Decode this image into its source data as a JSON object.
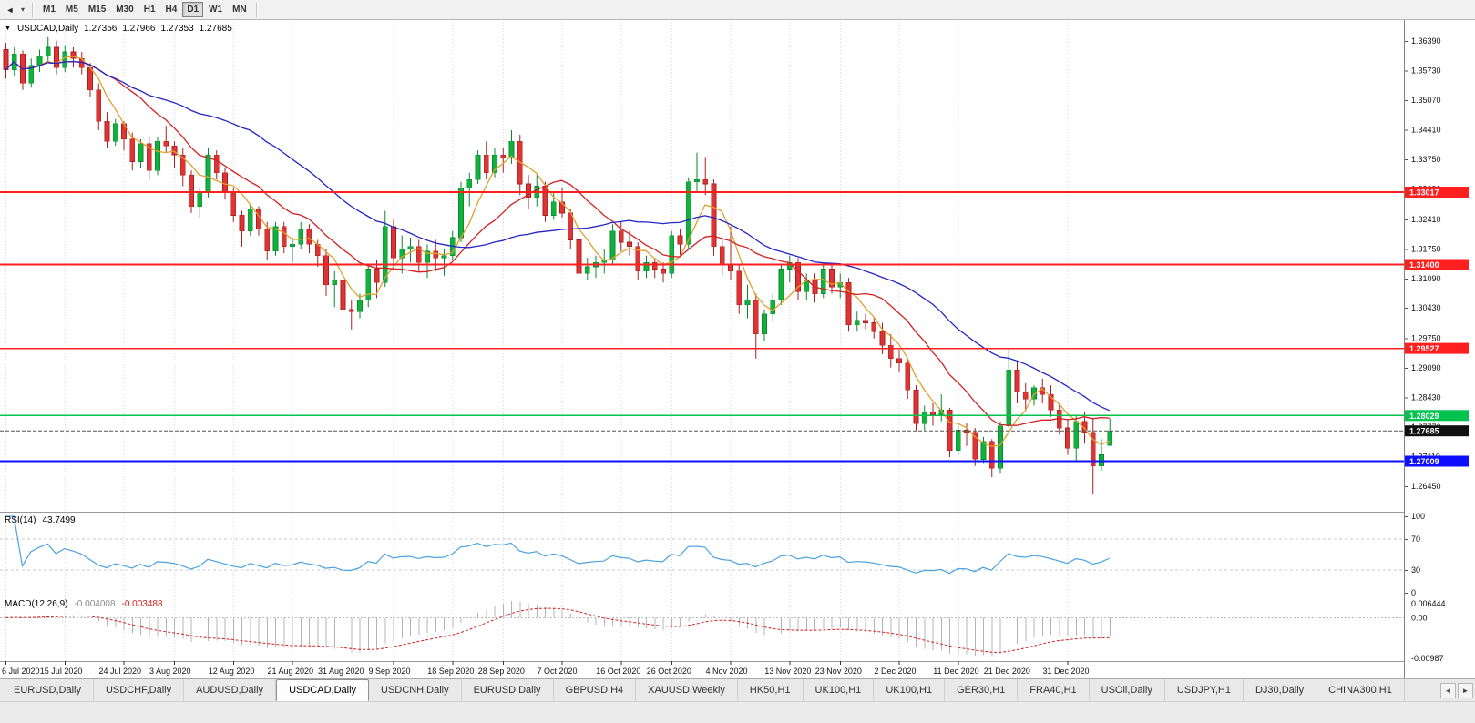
{
  "icons": {
    "collapse": "▼",
    "cursor": "◄",
    "caret": "▾",
    "tab_left": "◄",
    "tab_right": "►"
  },
  "toolbar": {
    "timeframes": [
      "M1",
      "M5",
      "M15",
      "M30",
      "H1",
      "H4",
      "D1",
      "W1",
      "MN"
    ],
    "active": "D1"
  },
  "info_bar": {
    "symbol": "USDCAD,Daily",
    "open": "1.27356",
    "high": "1.27966",
    "low": "1.27353",
    "close": "1.27685"
  },
  "colors": {
    "up": "#10b23c",
    "up_border": "#0a8a2e",
    "down": "#e03434",
    "down_border": "#a81f1f",
    "macd_hist": "#b4b4b4",
    "macd_signal": "#d42020",
    "price_badge": "#101010",
    "grid": "#dadada",
    "axis_text": "#111111"
  },
  "chart_data": {
    "type": "candlestick",
    "symbol": "USDCAD",
    "timeframe": "Daily",
    "y_axis": {
      "max": 1.368,
      "min": 1.259,
      "ticks": [
        "1.36390",
        "1.35730",
        "1.35070",
        "1.34410",
        "1.33750",
        "1.33090",
        "1.32410",
        "1.31750",
        "1.31090",
        "1.30430",
        "1.29750",
        "1.29090",
        "1.28430",
        "1.27770",
        "1.27110",
        "1.26450"
      ]
    },
    "x_ticks": [
      {
        "label": "6 Jul 2020",
        "index": 0
      },
      {
        "label": "15 Jul 2020",
        "index": 7
      },
      {
        "label": "24 Jul 2020",
        "index": 14
      },
      {
        "label": "3 Aug 2020",
        "index": 20
      },
      {
        "label": "12 Aug 2020",
        "index": 27
      },
      {
        "label": "21 Aug 2020",
        "index": 34
      },
      {
        "label": "31 Aug 2020",
        "index": 40
      },
      {
        "label": "9 Sep 2020",
        "index": 46
      },
      {
        "label": "18 Sep 2020",
        "index": 53
      },
      {
        "label": "28 Sep 2020",
        "index": 59
      },
      {
        "label": "7 Oct 2020",
        "index": 66
      },
      {
        "label": "16 Oct 2020",
        "index": 73
      },
      {
        "label": "26 Oct 2020",
        "index": 79
      },
      {
        "label": "4 Nov 2020",
        "index": 86
      },
      {
        "label": "13 Nov 2020",
        "index": 93
      },
      {
        "label": "23 Nov 2020",
        "index": 99
      },
      {
        "label": "2 Dec 2020",
        "index": 106
      },
      {
        "label": "11 Dec 2020",
        "index": 113
      },
      {
        "label": "21 Dec 2020",
        "index": 119
      },
      {
        "label": "31 Dec 2020",
        "index": 126
      }
    ],
    "candles": [
      [
        1.362,
        1.3635,
        1.3555,
        1.3575
      ],
      [
        1.3575,
        1.3625,
        1.356,
        1.361
      ],
      [
        1.361,
        1.3618,
        1.353,
        1.3545
      ],
      [
        1.3545,
        1.36,
        1.3535,
        1.3585
      ],
      [
        1.3585,
        1.362,
        1.357,
        1.3605
      ],
      [
        1.3605,
        1.3648,
        1.359,
        1.3625
      ],
      [
        1.3625,
        1.364,
        1.3565,
        1.358
      ],
      [
        1.358,
        1.363,
        1.357,
        1.3615
      ],
      [
        1.3615,
        1.3625,
        1.358,
        1.36
      ],
      [
        1.36,
        1.3615,
        1.3565,
        1.358
      ],
      [
        1.358,
        1.359,
        1.3515,
        1.353
      ],
      [
        1.353,
        1.3545,
        1.344,
        1.346
      ],
      [
        1.346,
        1.348,
        1.34,
        1.3415
      ],
      [
        1.3415,
        1.3465,
        1.3405,
        1.3455
      ],
      [
        1.3455,
        1.346,
        1.3395,
        1.342
      ],
      [
        1.342,
        1.3435,
        1.335,
        1.337
      ],
      [
        1.337,
        1.342,
        1.3355,
        1.341
      ],
      [
        1.341,
        1.3425,
        1.333,
        1.335
      ],
      [
        1.335,
        1.3425,
        1.334,
        1.3415
      ],
      [
        1.3415,
        1.345,
        1.339,
        1.3405
      ],
      [
        1.3405,
        1.3415,
        1.3355,
        1.3385
      ],
      [
        1.3385,
        1.34,
        1.3315,
        1.334
      ],
      [
        1.334,
        1.335,
        1.3255,
        1.327
      ],
      [
        1.327,
        1.331,
        1.3245,
        1.33
      ],
      [
        1.33,
        1.34,
        1.329,
        1.3385
      ],
      [
        1.3385,
        1.3395,
        1.333,
        1.3345
      ],
      [
        1.3345,
        1.3355,
        1.3285,
        1.33
      ],
      [
        1.33,
        1.331,
        1.3235,
        1.325
      ],
      [
        1.325,
        1.326,
        1.318,
        1.3215
      ],
      [
        1.3215,
        1.3275,
        1.3205,
        1.3265
      ],
      [
        1.3265,
        1.327,
        1.3205,
        1.322
      ],
      [
        1.322,
        1.3235,
        1.315,
        1.317
      ],
      [
        1.317,
        1.3235,
        1.316,
        1.3225
      ],
      [
        1.3225,
        1.3235,
        1.3165,
        1.318
      ],
      [
        1.318,
        1.32,
        1.3145,
        1.3185
      ],
      [
        1.3185,
        1.3235,
        1.3175,
        1.322
      ],
      [
        1.322,
        1.323,
        1.3165,
        1.3185
      ],
      [
        1.3185,
        1.3195,
        1.3135,
        1.316
      ],
      [
        1.316,
        1.3175,
        1.307,
        1.3095
      ],
      [
        1.3095,
        1.3125,
        1.3045,
        1.3105
      ],
      [
        1.3105,
        1.3115,
        1.3015,
        1.304
      ],
      [
        1.304,
        1.306,
        1.2995,
        1.3035
      ],
      [
        1.3035,
        1.3075,
        1.302,
        1.306
      ],
      [
        1.306,
        1.314,
        1.3045,
        1.313
      ],
      [
        1.313,
        1.315,
        1.3065,
        1.31
      ],
      [
        1.31,
        1.326,
        1.309,
        1.3225
      ],
      [
        1.3225,
        1.324,
        1.313,
        1.3155
      ],
      [
        1.3155,
        1.3205,
        1.312,
        1.3175
      ],
      [
        1.3175,
        1.32,
        1.3145,
        1.318
      ],
      [
        1.318,
        1.3195,
        1.3125,
        1.3145
      ],
      [
        1.3145,
        1.3185,
        1.311,
        1.317
      ],
      [
        1.317,
        1.3195,
        1.3125,
        1.3155
      ],
      [
        1.3155,
        1.3175,
        1.3115,
        1.316
      ],
      [
        1.316,
        1.3215,
        1.315,
        1.32
      ],
      [
        1.32,
        1.3325,
        1.319,
        1.331
      ],
      [
        1.331,
        1.3345,
        1.327,
        1.333
      ],
      [
        1.333,
        1.3395,
        1.332,
        1.3385
      ],
      [
        1.3385,
        1.3415,
        1.333,
        1.3345
      ],
      [
        1.3345,
        1.34,
        1.3335,
        1.3385
      ],
      [
        1.3385,
        1.34,
        1.3345,
        1.338
      ],
      [
        1.338,
        1.344,
        1.3365,
        1.3415
      ],
      [
        1.3415,
        1.343,
        1.3295,
        1.332
      ],
      [
        1.332,
        1.334,
        1.3265,
        1.329
      ],
      [
        1.329,
        1.334,
        1.327,
        1.3315
      ],
      [
        1.3315,
        1.3325,
        1.3235,
        1.325
      ],
      [
        1.325,
        1.33,
        1.324,
        1.328
      ],
      [
        1.328,
        1.331,
        1.3245,
        1.3255
      ],
      [
        1.3255,
        1.3265,
        1.3175,
        1.3195
      ],
      [
        1.3195,
        1.3205,
        1.31,
        1.312
      ],
      [
        1.312,
        1.3155,
        1.3105,
        1.3135
      ],
      [
        1.3135,
        1.316,
        1.311,
        1.3145
      ],
      [
        1.3145,
        1.3175,
        1.312,
        1.315
      ],
      [
        1.315,
        1.323,
        1.314,
        1.3215
      ],
      [
        1.3215,
        1.3235,
        1.317,
        1.319
      ],
      [
        1.319,
        1.3215,
        1.316,
        1.318
      ],
      [
        1.318,
        1.319,
        1.3105,
        1.3125
      ],
      [
        1.3125,
        1.316,
        1.311,
        1.3145
      ],
      [
        1.3145,
        1.3155,
        1.311,
        1.313
      ],
      [
        1.313,
        1.3145,
        1.31,
        1.312
      ],
      [
        1.312,
        1.3215,
        1.311,
        1.3205
      ],
      [
        1.3205,
        1.322,
        1.316,
        1.3185
      ],
      [
        1.3185,
        1.3335,
        1.3175,
        1.3325
      ],
      [
        1.3325,
        1.339,
        1.33,
        1.333
      ],
      [
        1.333,
        1.338,
        1.3295,
        1.332
      ],
      [
        1.332,
        1.333,
        1.316,
        1.318
      ],
      [
        1.318,
        1.32,
        1.3115,
        1.314
      ],
      [
        1.314,
        1.3225,
        1.3105,
        1.3125
      ],
      [
        1.3125,
        1.314,
        1.303,
        1.305
      ],
      [
        1.305,
        1.3095,
        1.302,
        1.306
      ],
      [
        1.306,
        1.3075,
        1.293,
        1.2985
      ],
      [
        1.2985,
        1.304,
        1.297,
        1.303
      ],
      [
        1.303,
        1.3075,
        1.3015,
        1.306
      ],
      [
        1.306,
        1.314,
        1.305,
        1.313
      ],
      [
        1.313,
        1.316,
        1.31,
        1.3145
      ],
      [
        1.3145,
        1.3155,
        1.306,
        1.308
      ],
      [
        1.308,
        1.312,
        1.306,
        1.3105
      ],
      [
        1.3105,
        1.312,
        1.3055,
        1.3075
      ],
      [
        1.3075,
        1.314,
        1.3065,
        1.313
      ],
      [
        1.313,
        1.314,
        1.3075,
        1.309
      ],
      [
        1.309,
        1.312,
        1.3065,
        1.31
      ],
      [
        1.31,
        1.311,
        1.299,
        1.3005
      ],
      [
        1.3005,
        1.3035,
        1.299,
        1.3015
      ],
      [
        1.3015,
        1.303,
        1.2995,
        1.301
      ],
      [
        1.301,
        1.302,
        1.2975,
        1.299
      ],
      [
        1.299,
        1.301,
        1.294,
        1.296
      ],
      [
        1.296,
        1.2985,
        1.291,
        1.293
      ],
      [
        1.293,
        1.295,
        1.29,
        1.292
      ],
      [
        1.292,
        1.293,
        1.284,
        1.286
      ],
      [
        1.286,
        1.287,
        1.277,
        1.2785
      ],
      [
        1.2785,
        1.2825,
        1.277,
        1.281
      ],
      [
        1.281,
        1.283,
        1.278,
        1.2805
      ],
      [
        1.2805,
        1.285,
        1.279,
        1.2815
      ],
      [
        1.2815,
        1.282,
        1.271,
        1.2725
      ],
      [
        1.2725,
        1.2785,
        1.2715,
        1.277
      ],
      [
        1.277,
        1.2785,
        1.2735,
        1.2765
      ],
      [
        1.2765,
        1.2775,
        1.269,
        1.2705
      ],
      [
        1.2705,
        1.2755,
        1.2695,
        1.2745
      ],
      [
        1.2745,
        1.275,
        1.2665,
        1.2685
      ],
      [
        1.2685,
        1.279,
        1.2675,
        1.278
      ],
      [
        1.278,
        1.295,
        1.2775,
        1.2905
      ],
      [
        1.2905,
        1.2925,
        1.283,
        1.2855
      ],
      [
        1.2855,
        1.2875,
        1.2815,
        1.284
      ],
      [
        1.284,
        1.287,
        1.2825,
        1.2865
      ],
      [
        1.2865,
        1.2885,
        1.283,
        1.285
      ],
      [
        1.285,
        1.287,
        1.28,
        1.2815
      ],
      [
        1.2815,
        1.283,
        1.276,
        1.2775
      ],
      [
        1.2775,
        1.2795,
        1.2715,
        1.273
      ],
      [
        1.273,
        1.2805,
        1.27,
        1.279
      ],
      [
        1.279,
        1.281,
        1.274,
        1.2765
      ],
      [
        1.2765,
        1.2795,
        1.2628,
        1.269
      ],
      [
        1.269,
        1.275,
        1.268,
        1.2715
      ],
      [
        1.27356,
        1.27966,
        1.27353,
        1.27685
      ]
    ],
    "moving_averages": [
      {
        "period": 5,
        "color": "#e0a02c"
      },
      {
        "period": 13,
        "color": "#d42020"
      },
      {
        "period": 30,
        "color": "#2424c8"
      }
    ],
    "h_lines": [
      {
        "price": 1.33017,
        "label": "1.33017",
        "color": "#ff1f1f",
        "width": 1.6
      },
      {
        "price": 1.314,
        "label": "1.31400",
        "color": "#ff1f1f",
        "width": 1.6
      },
      {
        "price": 1.29527,
        "label": "1.29527",
        "color": "#ff1f1f",
        "width": 1.6
      },
      {
        "price": 1.28029,
        "label": "1.28029",
        "color": "#00c24e",
        "width": 1.8
      },
      {
        "price": 1.27009,
        "label": "1.27009",
        "color": "#0d0dff",
        "width": 2.2
      }
    ],
    "current_price": {
      "price": 1.27685,
      "label": "1.27685"
    },
    "rsi": {
      "label": "RSI(14)",
      "value": "43.7499",
      "period": 14,
      "levels": [
        30,
        70
      ],
      "axis": [
        "100",
        "70",
        "30",
        "0"
      ],
      "color": "#4ba2e0"
    },
    "macd": {
      "label": "MACD(12,26,9)",
      "value": "-0.004008",
      "signal": "-0.003488",
      "fast": 12,
      "slow": 26,
      "signal_period": 9,
      "axis_top": "0.006444",
      "axis_zero": "0.00",
      "axis_bottom": "-0.00987"
    }
  },
  "tabs": {
    "items": [
      {
        "label": "EURUSD,Daily",
        "active": false
      },
      {
        "label": "USDCHF,Daily",
        "active": false
      },
      {
        "label": "AUDUSD,Daily",
        "active": false
      },
      {
        "label": "USDCAD,Daily",
        "active": true
      },
      {
        "label": "USDCNH,Daily",
        "active": false
      },
      {
        "label": "EURUSD,Daily",
        "active": false
      },
      {
        "label": "GBPUSD,H4",
        "active": false
      },
      {
        "label": "XAUUSD,Weekly",
        "active": false
      },
      {
        "label": "HK50,H1",
        "active": false
      },
      {
        "label": "UK100,H1",
        "active": false
      },
      {
        "label": "UK100,H1",
        "active": false
      },
      {
        "label": "GER30,H1",
        "active": false
      },
      {
        "label": "FRA40,H1",
        "active": false
      },
      {
        "label": "USOil,Daily",
        "active": false
      },
      {
        "label": "USDJPY,H1",
        "active": false
      },
      {
        "label": "DJ30,Daily",
        "active": false
      },
      {
        "label": "CHINA300,H1",
        "active": false
      }
    ]
  }
}
